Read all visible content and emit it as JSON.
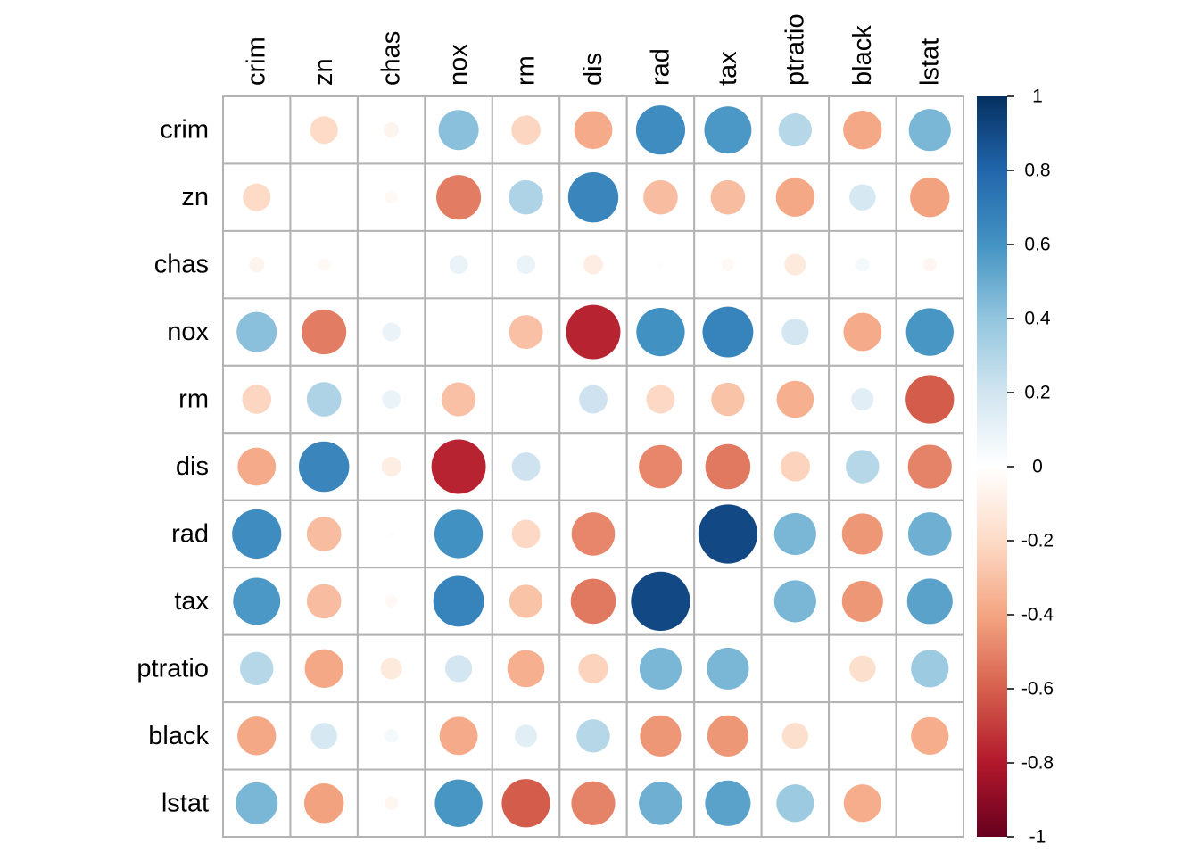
{
  "chart_data": {
    "type": "heatmap",
    "style": "corrplot-circle",
    "variables": [
      "crim",
      "zn",
      "chas",
      "nox",
      "rm",
      "dis",
      "rad",
      "tax",
      "ptratio",
      "black",
      "lstat"
    ],
    "matrix": [
      [
        0,
        -0.2,
        -0.06,
        0.42,
        -0.22,
        -0.38,
        0.63,
        0.58,
        0.29,
        -0.39,
        0.46
      ],
      [
        -0.2,
        0,
        -0.04,
        -0.52,
        0.31,
        0.66,
        -0.31,
        -0.31,
        -0.39,
        0.18,
        -0.41
      ],
      [
        -0.06,
        -0.04,
        0,
        0.09,
        0.09,
        -0.1,
        -0.01,
        -0.04,
        -0.12,
        0.05,
        -0.05
      ],
      [
        0.42,
        -0.52,
        0.09,
        0,
        -0.3,
        -0.77,
        0.61,
        0.67,
        0.19,
        -0.38,
        0.59
      ],
      [
        -0.22,
        0.31,
        0.09,
        -0.3,
        0,
        0.21,
        -0.21,
        -0.29,
        -0.36,
        0.13,
        -0.61
      ],
      [
        -0.38,
        0.66,
        -0.1,
        -0.77,
        0.21,
        0,
        -0.49,
        -0.53,
        -0.23,
        0.29,
        -0.5
      ],
      [
        0.63,
        -0.31,
        -0.01,
        0.61,
        -0.21,
        -0.49,
        0,
        0.91,
        0.46,
        -0.44,
        0.49
      ],
      [
        0.58,
        -0.31,
        -0.04,
        0.67,
        -0.29,
        -0.53,
        0.91,
        0,
        0.46,
        -0.44,
        0.54
      ],
      [
        0.29,
        -0.39,
        -0.12,
        0.19,
        -0.36,
        -0.23,
        0.46,
        0.46,
        0,
        -0.18,
        0.37
      ],
      [
        -0.39,
        0.18,
        0.05,
        -0.38,
        0.13,
        0.29,
        -0.44,
        -0.44,
        -0.18,
        0,
        -0.37
      ],
      [
        0.46,
        -0.41,
        -0.05,
        0.59,
        -0.61,
        -0.5,
        0.49,
        0.54,
        0.37,
        -0.37,
        0
      ]
    ],
    "colorbar": {
      "range": [
        -1,
        1
      ],
      "ticks": [
        "1",
        "0.8",
        "0.6",
        "0.4",
        "0.2",
        "0",
        "-0.2",
        "-0.4",
        "-0.6",
        "-0.8",
        "-1"
      ],
      "tick_values": [
        1,
        0.8,
        0.6,
        0.4,
        0.2,
        0,
        -0.2,
        -0.4,
        -0.6,
        -0.8,
        -1
      ],
      "colors": [
        "#67001F",
        "#B2182B",
        "#D6604D",
        "#F4A582",
        "#FDDBC7",
        "#FFFFFF",
        "#D1E5F0",
        "#92C5DE",
        "#4393C3",
        "#2166AC",
        "#053061"
      ]
    },
    "title": "",
    "xlabel": "",
    "ylabel": "",
    "grid": true,
    "legend": "right"
  }
}
